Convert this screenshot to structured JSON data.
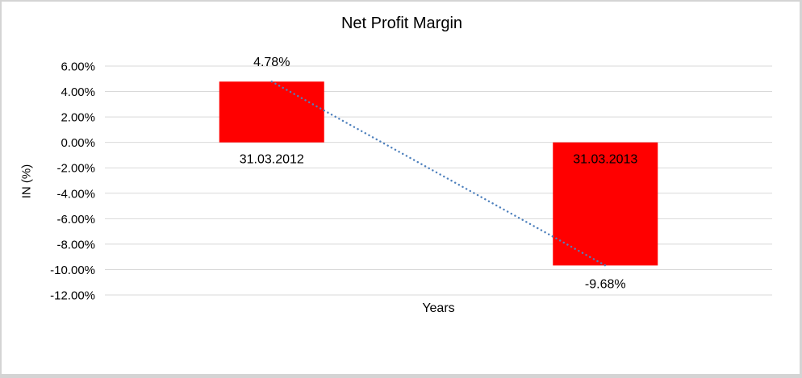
{
  "chart_data": {
    "type": "bar",
    "title": "Net Profit Margin",
    "xlabel": "Years",
    "ylabel": "IN (%)",
    "categories": [
      "31.03.2012",
      "31.03.2013"
    ],
    "values": [
      4.78,
      -9.68
    ],
    "data_labels": [
      "4.78%",
      "-9.68%"
    ],
    "ytick_labels": [
      "6.00%",
      "4.00%",
      "2.00%",
      "0.00%",
      "-2.00%",
      "-4.00%",
      "-6.00%",
      "-8.00%",
      "-10.00%",
      "-12.00%"
    ],
    "ytick_step": 2,
    "ylim": [
      -12,
      6
    ],
    "grid": true,
    "legend": "none",
    "bar_color": "#FF0000",
    "gridline_color": "#D9D9D9",
    "text_color": "#000000",
    "trendline": {
      "type": "linear",
      "style": "dotted",
      "color": "#4F81BD",
      "from": 4.78,
      "to": -9.68
    }
  }
}
